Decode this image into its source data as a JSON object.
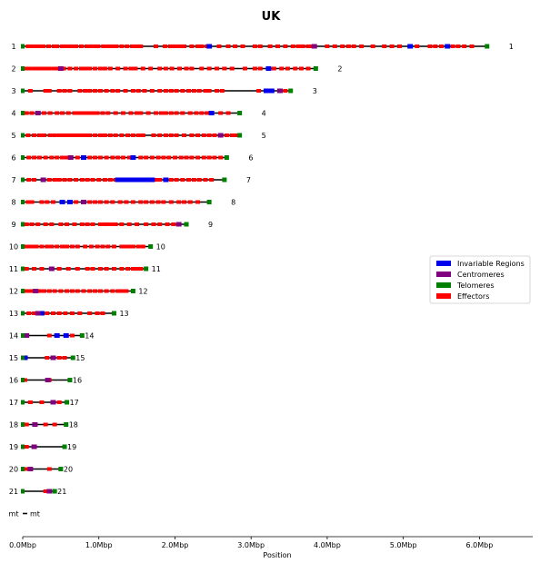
{
  "chart_data": {
    "type": "chromosome-map",
    "title": "UK",
    "xlabel": "Position",
    "xlim": [
      0,
      6.7
    ],
    "xticks": [
      {
        "v": 0,
        "label": "0.0Mbp"
      },
      {
        "v": 1,
        "label": "1.0Mbp"
      },
      {
        "v": 2,
        "label": "2.0Mbp"
      },
      {
        "v": 3,
        "label": "3.0Mbp"
      },
      {
        "v": 4,
        "label": "4.0Mbp"
      },
      {
        "v": 5,
        "label": "5.0Mbp"
      },
      {
        "v": 6,
        "label": "6.0Mbp"
      }
    ],
    "legend": {
      "position": "right",
      "entries": [
        {
          "name": "Invariable Regions",
          "color": "#0000ee"
        },
        {
          "name": "Centromeres",
          "color": "#800080"
        },
        {
          "name": "Telomeres",
          "color": "#008000"
        },
        {
          "name": "Effectors",
          "color": "#ff0000"
        }
      ]
    },
    "colors": {
      "invariable": "#0000ee",
      "centromere": "#800080",
      "telomere": "#008000",
      "effector": "#ff0000"
    },
    "chromosomes": [
      {
        "name": "1",
        "length": 6.1,
        "centromere": 3.83,
        "invariable": [
          2.45,
          5.09,
          5.58
        ],
        "effectors": [
          0.07,
          0.12,
          0.18,
          0.22,
          0.27,
          0.34,
          0.41,
          0.45,
          0.52,
          0.56,
          0.6,
          0.64,
          0.7,
          0.77,
          0.84,
          0.9,
          0.95,
          0.99,
          1.06,
          1.12,
          1.17,
          1.23,
          1.3,
          1.37,
          1.44,
          1.5,
          1.55,
          1.75,
          1.87,
          1.94,
          2.0,
          2.06,
          2.12,
          2.22,
          2.3,
          2.35,
          2.42,
          2.58,
          2.7,
          2.79,
          2.89,
          3.05,
          3.12,
          3.25,
          3.35,
          3.45,
          3.55,
          3.62,
          3.68,
          3.75,
          3.79,
          4.0,
          4.1,
          4.2,
          4.28,
          4.35,
          4.45,
          4.6,
          4.75,
          4.85,
          4.95,
          5.18,
          5.35,
          5.42,
          5.5,
          5.65,
          5.72,
          5.8,
          5.9
        ]
      },
      {
        "name": "2",
        "length": 3.85,
        "centromere": 0.5,
        "invariable": [
          3.23
        ],
        "effectors": [
          0.05,
          0.1,
          0.16,
          0.2,
          0.25,
          0.3,
          0.35,
          0.41,
          0.46,
          0.54,
          0.62,
          0.7,
          0.77,
          0.83,
          0.88,
          0.95,
          1.02,
          1.08,
          1.15,
          1.25,
          1.35,
          1.42,
          1.48,
          1.58,
          1.68,
          1.8,
          1.88,
          1.96,
          2.06,
          2.15,
          2.22,
          2.35,
          2.45,
          2.55,
          2.65,
          2.75,
          2.92,
          3.05,
          3.12,
          3.3,
          3.4,
          3.48,
          3.58,
          3.66,
          3.75
        ]
      },
      {
        "name": "3",
        "length": 3.52,
        "centromere": 3.38,
        "invariable": [
          3.2,
          3.27
        ],
        "effectors": [
          0.1,
          0.3,
          0.35,
          0.48,
          0.55,
          0.62,
          0.75,
          0.82,
          0.88,
          0.95,
          1.02,
          1.1,
          1.18,
          1.25,
          1.35,
          1.45,
          1.52,
          1.6,
          1.7,
          1.8,
          1.88,
          1.95,
          2.02,
          2.1,
          2.18,
          2.25,
          2.32,
          2.4,
          2.45,
          2.55,
          2.62,
          3.1,
          3.45
        ]
      },
      {
        "name": "4",
        "length": 2.85,
        "centromere": 0.2,
        "invariable": [
          2.48
        ],
        "effectors": [
          0.05,
          0.12,
          0.28,
          0.36,
          0.45,
          0.52,
          0.6,
          0.68,
          0.74,
          0.8,
          0.86,
          0.92,
          0.98,
          1.05,
          1.12,
          1.22,
          1.32,
          1.42,
          1.5,
          1.55,
          1.65,
          1.75,
          1.82,
          1.88,
          1.95,
          2.02,
          2.1,
          2.2,
          2.28,
          2.35,
          2.42,
          2.6,
          2.7
        ]
      },
      {
        "name": "5",
        "length": 2.85,
        "centromere": 2.6,
        "invariable": [],
        "effectors": [
          0.07,
          0.15,
          0.22,
          0.28,
          0.36,
          0.42,
          0.48,
          0.53,
          0.58,
          0.63,
          0.68,
          0.73,
          0.78,
          0.83,
          0.88,
          0.95,
          1.02,
          1.08,
          1.15,
          1.22,
          1.3,
          1.38,
          1.45,
          1.52,
          1.58,
          1.72,
          1.8,
          1.88,
          1.95,
          2.02,
          2.12,
          2.22,
          2.3,
          2.38,
          2.45,
          2.52,
          2.68,
          2.75,
          2.8
        ]
      },
      {
        "name": "6",
        "length": 2.68,
        "centromere": 0.63,
        "invariable": [
          0.8,
          1.45
        ],
        "effectors": [
          0.08,
          0.15,
          0.22,
          0.3,
          0.38,
          0.45,
          0.52,
          0.58,
          0.72,
          0.88,
          0.95,
          1.02,
          1.1,
          1.18,
          1.25,
          1.32,
          1.4,
          1.55,
          1.62,
          1.7,
          1.78,
          1.85,
          1.92,
          2.0,
          2.08,
          2.15,
          2.22,
          2.3,
          2.38,
          2.45,
          2.52,
          2.6
        ]
      },
      {
        "name": "7",
        "length": 2.65,
        "centromere": 0.27,
        "invariable": [
          1.25,
          1.3,
          1.35,
          1.4,
          1.45,
          1.5,
          1.55,
          1.6,
          1.65,
          1.7,
          1.88
        ],
        "effectors": [
          0.08,
          0.15,
          0.35,
          0.42,
          0.48,
          0.55,
          0.62,
          0.7,
          0.78,
          0.85,
          0.92,
          1.0,
          1.08,
          1.15,
          1.22,
          1.28,
          1.38,
          1.48,
          1.58,
          1.68,
          1.75,
          1.8,
          1.95,
          2.02,
          2.1,
          2.18,
          2.25,
          2.32,
          2.4,
          2.48
        ]
      },
      {
        "name": "8",
        "length": 2.45,
        "centromere": 0.8,
        "invariable": [
          0.52,
          0.62
        ],
        "effectors": [
          0.07,
          0.12,
          0.25,
          0.32,
          0.4,
          0.7,
          0.88,
          0.95,
          1.02,
          1.1,
          1.18,
          1.28,
          1.36,
          1.45,
          1.55,
          1.62,
          1.7,
          1.78,
          1.85,
          1.95,
          2.05,
          2.12,
          2.2,
          2.3
        ]
      },
      {
        "name": "9",
        "length": 2.15,
        "centromere": 2.05,
        "invariable": [],
        "effectors": [
          0.05,
          0.12,
          0.2,
          0.3,
          0.38,
          0.5,
          0.58,
          0.68,
          0.78,
          0.85,
          0.92,
          1.02,
          1.08,
          1.12,
          1.18,
          1.22,
          1.3,
          1.4,
          1.5,
          1.62,
          1.72,
          1.8,
          1.9,
          1.98
        ]
      },
      {
        "name": "10",
        "length": 1.68,
        "centromere": null,
        "invariable": [],
        "effectors": [
          0.05,
          0.1,
          0.14,
          0.18,
          0.25,
          0.32,
          0.38,
          0.45,
          0.52,
          0.58,
          0.65,
          0.72,
          0.82,
          0.9,
          0.98,
          1.05,
          1.12,
          1.2,
          1.3,
          1.35,
          1.4,
          1.45,
          1.52,
          1.58
        ]
      },
      {
        "name": "11",
        "length": 1.62,
        "centromere": 0.38,
        "invariable": [],
        "effectors": [
          0.05,
          0.15,
          0.25,
          0.48,
          0.6,
          0.72,
          0.85,
          0.92,
          1.02,
          1.1,
          1.2,
          1.3,
          1.38,
          1.45,
          1.5,
          1.55
        ]
      },
      {
        "name": "12",
        "length": 1.45,
        "centromere": 0.17,
        "invariable": [],
        "effectors": [
          0.05,
          0.1,
          0.15,
          0.22,
          0.28,
          0.35,
          0.42,
          0.5,
          0.58,
          0.65,
          0.72,
          0.8,
          0.88,
          0.95,
          1.02,
          1.1,
          1.18,
          1.25,
          1.28,
          1.32,
          1.36
        ]
      },
      {
        "name": "13",
        "length": 1.2,
        "centromere": 0.2,
        "invariable": [
          0.25
        ],
        "effectors": [
          0.08,
          0.15,
          0.32,
          0.4,
          0.48,
          0.56,
          0.65,
          0.75,
          0.88,
          0.98,
          1.05
        ]
      },
      {
        "name": "14",
        "length": 0.78,
        "centromere": 0.05,
        "invariable": [
          0.45,
          0.57
        ],
        "effectors": [
          0.02,
          0.35,
          0.65
        ]
      },
      {
        "name": "15",
        "length": 0.66,
        "centromere": 0.4,
        "invariable": [
          0.03
        ],
        "effectors": [
          0.32,
          0.48,
          0.55
        ]
      },
      {
        "name": "16",
        "length": 0.62,
        "centromere": 0.33,
        "invariable": [],
        "effectors": [
          0.03,
          0.35
        ]
      },
      {
        "name": "17",
        "length": 0.58,
        "centromere": 0.4,
        "invariable": [],
        "effectors": [
          0.1,
          0.25,
          0.48
        ]
      },
      {
        "name": "18",
        "length": 0.57,
        "centromere": 0.16,
        "invariable": [],
        "effectors": [
          0.05,
          0.3,
          0.42
        ]
      },
      {
        "name": "19",
        "length": 0.55,
        "centromere": 0.15,
        "invariable": [],
        "effectors": [
          0.05
        ]
      },
      {
        "name": "20",
        "length": 0.5,
        "centromere": 0.1,
        "invariable": [],
        "effectors": [
          0.05,
          0.35
        ]
      },
      {
        "name": "21",
        "length": 0.42,
        "centromere": 0.35,
        "invariable": [],
        "effectors": [
          0.3
        ]
      },
      {
        "name": "mt",
        "length": 0.06,
        "centromere": null,
        "invariable": [],
        "effectors": [],
        "telomeres": false
      }
    ]
  }
}
